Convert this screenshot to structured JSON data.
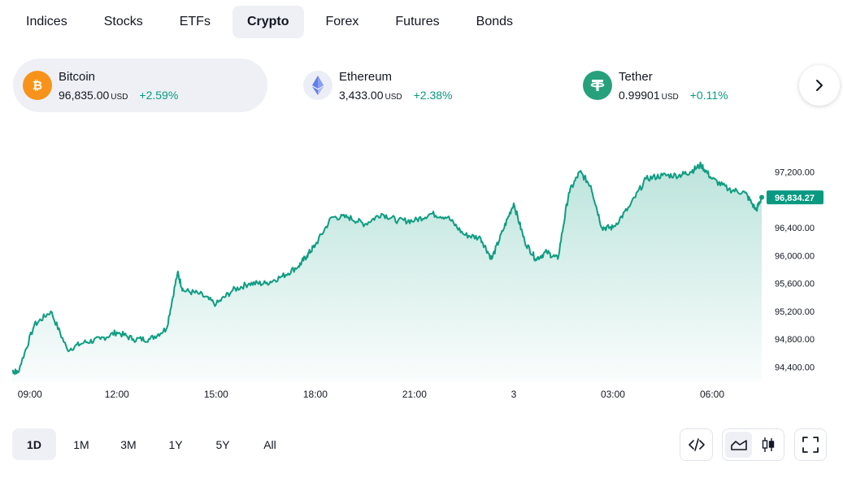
{
  "tabs": [
    {
      "label": "Indices",
      "active": false
    },
    {
      "label": "Stocks",
      "active": false
    },
    {
      "label": "ETFs",
      "active": false
    },
    {
      "label": "Crypto",
      "active": true
    },
    {
      "label": "Forex",
      "active": false
    },
    {
      "label": "Futures",
      "active": false
    },
    {
      "label": "Bonds",
      "active": false
    }
  ],
  "tickers": [
    {
      "name": "Bitcoin",
      "price": "96,835.00",
      "unit": "USD",
      "change": "+2.59%",
      "icon": "bitcoin-icon",
      "icon_color": "#f7931a",
      "active": true
    },
    {
      "name": "Ethereum",
      "price": "3,433.00",
      "unit": "USD",
      "change": "+2.38%",
      "icon": "ethereum-icon",
      "icon_color": "#627eea",
      "active": false
    },
    {
      "name": "Tether",
      "price": "0.99901",
      "unit": "USD",
      "change": "+0.11%",
      "icon": "tether-icon",
      "icon_color": "#26a17b",
      "active": false
    }
  ],
  "colors": {
    "accent_green": "#089981",
    "line_green": "#0f9d82",
    "active_bg": "#eef0f5"
  },
  "chart_data": {
    "type": "area",
    "series": [
      {
        "x": [
          "08:50",
          "09:00",
          "09:30",
          "10:00",
          "10:30",
          "11:00",
          "11:30",
          "12:00",
          "12:30",
          "13:00",
          "13:30",
          "13:50",
          "14:00",
          "14:30",
          "15:00",
          "15:30",
          "16:00",
          "16:30",
          "17:00",
          "17:30",
          "17:45",
          "18:00",
          "18:30",
          "19:00",
          "19:30",
          "20:00",
          "20:30",
          "21:00",
          "21:30",
          "22:00",
          "22:30",
          "23:00",
          "23:20",
          "23:40",
          "00:00",
          "00:20",
          "00:40",
          "01:00",
          "01:20",
          "01:40",
          "02:00",
          "02:20",
          "02:40",
          "03:00",
          "03:30",
          "04:00",
          "04:30",
          "05:00",
          "05:20",
          "05:40",
          "06:00",
          "06:30",
          "07:00",
          "07:20",
          "07:30"
        ],
        "values": [
          94350,
          94320,
          95000,
          95200,
          94650,
          94750,
          94800,
          94900,
          94800,
          94800,
          94950,
          95750,
          95500,
          95450,
          95300,
          95500,
          95600,
          95600,
          95700,
          95850,
          96000,
          96150,
          96550,
          96550,
          96450,
          96600,
          96500,
          96500,
          96600,
          96550,
          96300,
          96250,
          95950,
          96350,
          96750,
          96200,
          95950,
          96050,
          95950,
          96900,
          97200,
          97000,
          96400,
          96400,
          96700,
          97100,
          97150,
          97150,
          97200,
          97300,
          97100,
          96950,
          96900,
          96650,
          96834.27
        ]
      }
    ],
    "current_value": "96,834.27",
    "ylim": [
      94300,
      97800
    ],
    "yticks": [
      "97,200.00",
      "96,800.00",
      "96,400.00",
      "96,000.00",
      "95,600.00",
      "95,200.00",
      "94,800.00",
      "94,400.00"
    ],
    "xticks": [
      "09:00",
      "12:00",
      "15:00",
      "18:00",
      "21:00",
      "3",
      "03:00",
      "06:00"
    ],
    "xlabel": "",
    "ylabel": "",
    "grid": false
  },
  "ranges": [
    {
      "label": "1D",
      "active": true
    },
    {
      "label": "1M",
      "active": false
    },
    {
      "label": "3M",
      "active": false
    },
    {
      "label": "1Y",
      "active": false
    },
    {
      "label": "5Y",
      "active": false
    },
    {
      "label": "All",
      "active": false
    }
  ],
  "tools": {
    "embed": "code-icon",
    "area_chart": "area-chart-icon",
    "candles": "candlestick-icon",
    "fullscreen": "fullscreen-icon"
  }
}
